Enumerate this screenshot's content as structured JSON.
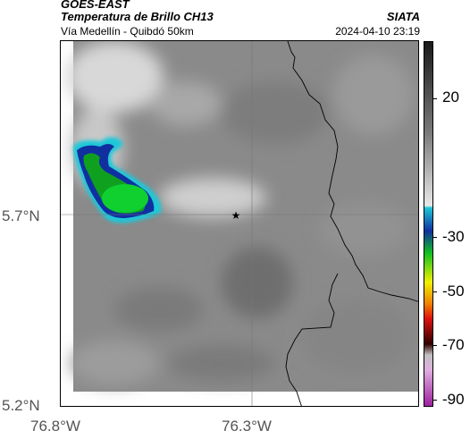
{
  "header": {
    "line1": "GOES-EAST",
    "line2": "Temperatura de Brillo CH13",
    "line3": "Vía Medellín - Quibdó 50km",
    "org": "SIATA",
    "datetime": "2024-04-10 23:19"
  },
  "axes": {
    "lat_labels": [
      "5.7°N",
      "5.2°N"
    ],
    "lon_labels": [
      "76.8°W",
      "76.3°W"
    ]
  },
  "colorbar": {
    "labels": [
      "20",
      "-30",
      "-50",
      "-70",
      "-90"
    ],
    "colors": {
      "gray_dark": "#2a2a2a",
      "gray_light": "#e8e8e8",
      "cyan": "#1ec8d8",
      "blue": "#1030a0",
      "green": "#10c020",
      "yellow": "#f0f000",
      "red": "#e01010",
      "dark": "#300000",
      "magenta": "#c040c0"
    }
  },
  "map": {
    "marker": "star-icon",
    "colors": {
      "background_gray": "#8a8a8a",
      "cloud_light": "#d8d8d8",
      "border": "#000000"
    }
  }
}
